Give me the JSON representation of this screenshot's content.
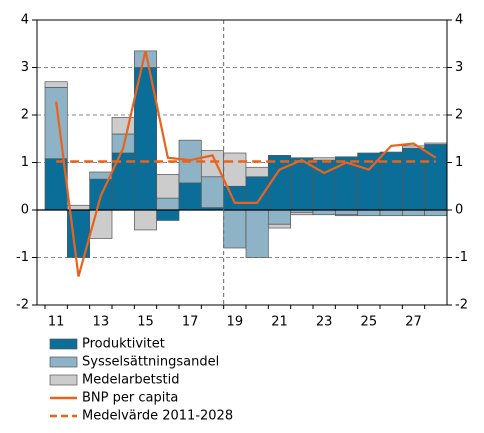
{
  "chart_data": {
    "type": "bar",
    "categories": [
      "11",
      null,
      "13",
      null,
      "15",
      null,
      "17",
      null,
      "19",
      null,
      "21",
      null,
      "23",
      null,
      "25",
      null,
      "27",
      null
    ],
    "series": [
      {
        "name": "Produktivitet",
        "type": "bar",
        "color": "#0b6e99",
        "values": [
          1.08,
          -1.0,
          0.65,
          1.2,
          3.0,
          -0.22,
          0.57,
          0.05,
          0.5,
          0.7,
          1.15,
          1.1,
          1.05,
          1.12,
          1.2,
          1.22,
          1.3,
          1.38
        ]
      },
      {
        "name": "Sysselsättningsandel",
        "type": "bar",
        "color": "#8fb3c6",
        "values": [
          1.5,
          0,
          0.15,
          0.4,
          0.35,
          0.25,
          0.9,
          0.65,
          -0.8,
          -1.0,
          -0.3,
          -0.05,
          -0.1,
          -0.1,
          -0.12,
          -0.12,
          -0.12,
          -0.12
        ]
      },
      {
        "name": "Medelarbetstid",
        "type": "bar",
        "color": "#cccccc",
        "values": [
          0.12,
          0.1,
          -0.6,
          0.35,
          -0.42,
          0.5,
          0,
          0.55,
          0.7,
          0.2,
          -0.08,
          -0.05,
          0.05,
          -0.02,
          0,
          0,
          0.05,
          0.03
        ]
      },
      {
        "name": "BNP per capita",
        "type": "line",
        "color": "#e8641e",
        "values": [
          2.28,
          -1.4,
          0.3,
          1.3,
          3.35,
          1.1,
          1.05,
          1.15,
          0.15,
          0.15,
          0.85,
          1.05,
          0.78,
          1.0,
          0.85,
          1.35,
          1.4,
          1.1
        ]
      },
      {
        "name": "Medelvärde 2011-2028",
        "type": "line",
        "dashed": true,
        "color": "#e8641e",
        "values": [
          1.02,
          1.02,
          1.02,
          1.02,
          1.02,
          1.02,
          1.02,
          1.02,
          1.02,
          1.02,
          1.02,
          1.02,
          1.02,
          1.02,
          1.02,
          1.02,
          1.02,
          1.02
        ]
      }
    ],
    "ylim": [
      -2,
      4
    ],
    "yticks": [
      -2,
      -1,
      0,
      1,
      2,
      3,
      4
    ],
    "y2lim": [
      -2,
      4
    ],
    "y2ticks": [
      -2,
      -1,
      0,
      1,
      2,
      3,
      4
    ],
    "grid": true,
    "legend": "bottom"
  }
}
